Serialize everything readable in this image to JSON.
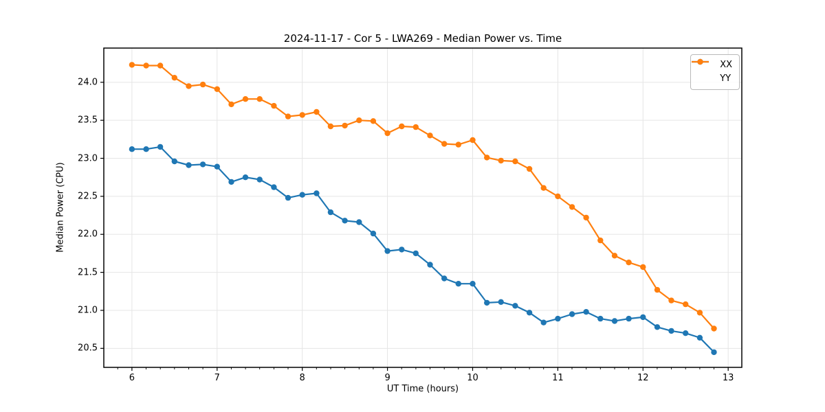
{
  "chart_data": {
    "type": "line",
    "title": "2024-11-17 - Cor 5 - LWA269 - Median Power vs. Time",
    "xlabel": "UT Time (hours)",
    "ylabel": "Median Power (CPU)",
    "xlim": [
      5.67,
      13.16
    ],
    "ylim": [
      20.25,
      24.45
    ],
    "x_major_ticks": [
      6,
      7,
      8,
      9,
      10,
      11,
      12,
      13
    ],
    "x_tick_labels": [
      "6",
      "7",
      "8",
      "9",
      "10",
      "11",
      "12",
      "13"
    ],
    "x_minor_step": 0.166667,
    "y_major_ticks": [
      20.5,
      21.0,
      21.5,
      22.0,
      22.5,
      23.0,
      23.5,
      24.0
    ],
    "y_tick_labels": [
      "20.5",
      "21.0",
      "21.5",
      "22.0",
      "22.5",
      "23.0",
      "23.5",
      "24.0"
    ],
    "grid": true,
    "grid_color": "#e5e5e5",
    "legend_position": "upper right",
    "x": [
      6.0,
      6.167,
      6.333,
      6.5,
      6.667,
      6.833,
      7.0,
      7.167,
      7.333,
      7.5,
      7.667,
      7.833,
      8.0,
      8.167,
      8.333,
      8.5,
      8.667,
      8.833,
      9.0,
      9.167,
      9.333,
      9.5,
      9.667,
      9.833,
      10.0,
      10.167,
      10.333,
      10.5,
      10.667,
      10.833,
      11.0,
      11.167,
      11.333,
      11.5,
      11.667,
      11.833,
      12.0,
      12.167,
      12.333,
      12.5,
      12.667,
      12.833
    ],
    "series": [
      {
        "name": "XX",
        "color": "#1f77b4",
        "values": [
          23.12,
          23.12,
          23.15,
          22.96,
          22.91,
          22.92,
          22.89,
          22.69,
          22.75,
          22.72,
          22.62,
          22.48,
          22.52,
          22.54,
          22.29,
          22.18,
          22.16,
          22.01,
          21.78,
          21.8,
          21.75,
          21.6,
          21.42,
          21.35,
          21.35,
          21.1,
          21.11,
          21.06,
          20.97,
          20.84,
          20.89,
          20.95,
          20.98,
          20.89,
          20.86,
          20.89,
          20.91,
          20.78,
          20.73,
          20.7,
          20.64,
          20.45
        ]
      },
      {
        "name": "YY",
        "color": "#ff7f0e",
        "values": [
          24.23,
          24.22,
          24.22,
          24.06,
          23.95,
          23.97,
          23.91,
          23.71,
          23.78,
          23.78,
          23.69,
          23.55,
          23.57,
          23.61,
          23.42,
          23.43,
          23.5,
          23.49,
          23.33,
          23.42,
          23.41,
          23.3,
          23.19,
          23.18,
          23.24,
          23.01,
          22.97,
          22.96,
          22.86,
          22.61,
          22.5,
          22.36,
          22.22,
          21.92,
          21.72,
          21.63,
          21.57,
          21.27,
          21.13,
          21.08,
          20.97,
          20.76
        ]
      }
    ]
  }
}
